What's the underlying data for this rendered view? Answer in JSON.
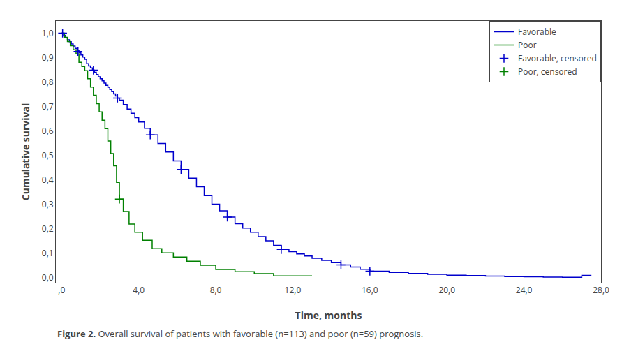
{
  "chart_data": {
    "type": "line",
    "xlabel": "Time, months",
    "ylabel": "Cumulative survival",
    "annotations": [
      "Figure 2.",
      " Overall survival of patients with favorable (n=113) and poor (n=59) prognosis."
    ],
    "xlim": [
      -0.3,
      28
    ],
    "ylim": [
      -0.02,
      1.05
    ],
    "xticks": [
      {
        "value": 0,
        "label": ",0"
      },
      {
        "value": 4,
        "label": "4,0"
      },
      {
        "value": 8,
        "label": "8,0"
      },
      {
        "value": 12,
        "label": "12,0"
      },
      {
        "value": 16,
        "label": "16,0"
      },
      {
        "value": 20,
        "label": "20,0"
      },
      {
        "value": 24,
        "label": "24,0"
      },
      {
        "value": 28,
        "label": "28,0"
      }
    ],
    "yticks": [
      {
        "value": 0.0,
        "label": "0,0"
      },
      {
        "value": 0.1,
        "label": "0,1"
      },
      {
        "value": 0.2,
        "label": "0,2"
      },
      {
        "value": 0.3,
        "label": "0,3"
      },
      {
        "value": 0.4,
        "label": "0,4"
      },
      {
        "value": 0.5,
        "label": "0,5"
      },
      {
        "value": 0.6,
        "label": "0,6"
      },
      {
        "value": 0.7,
        "label": "0,7"
      },
      {
        "value": 0.8,
        "label": "0,8"
      },
      {
        "value": 0.9,
        "label": "0,9"
      },
      {
        "value": 1.0,
        "label": "1,0"
      }
    ],
    "grid": false,
    "legend": "upper right",
    "series": [
      {
        "name": "Favorable",
        "type": "step",
        "color": "#0000CC",
        "x": [
          0.0,
          0.1,
          0.2,
          0.3,
          0.4,
          0.5,
          0.6,
          0.7,
          0.8,
          0.9,
          1.0,
          1.1,
          1.2,
          1.3,
          1.4,
          1.5,
          1.6,
          1.7,
          1.8,
          1.9,
          2.0,
          2.1,
          2.2,
          2.3,
          2.4,
          2.5,
          2.6,
          2.7,
          2.8,
          2.9,
          3.0,
          3.2,
          3.4,
          3.6,
          3.8,
          4.0,
          4.3,
          4.6,
          5.0,
          5.4,
          5.8,
          6.2,
          6.6,
          7.0,
          7.4,
          7.8,
          8.2,
          8.6,
          9.0,
          9.4,
          9.8,
          10.2,
          10.6,
          11.0,
          11.4,
          11.8,
          12.2,
          12.6,
          13.0,
          13.5,
          14.0,
          14.5,
          15.0,
          15.5,
          16.0,
          17.0,
          18.0,
          19.0,
          20.0,
          21.0,
          22.0,
          23.0,
          24.0,
          25.0,
          26.0,
          27.0,
          27.5
        ],
        "values": [
          1.0,
          0.991,
          0.982,
          0.973,
          0.965,
          0.956,
          0.947,
          0.938,
          0.929,
          0.92,
          0.911,
          0.902,
          0.893,
          0.875,
          0.866,
          0.858,
          0.849,
          0.84,
          0.831,
          0.822,
          0.814,
          0.805,
          0.796,
          0.787,
          0.779,
          0.77,
          0.761,
          0.752,
          0.743,
          0.735,
          0.726,
          0.708,
          0.69,
          0.673,
          0.655,
          0.637,
          0.611,
          0.584,
          0.549,
          0.514,
          0.478,
          0.443,
          0.407,
          0.372,
          0.336,
          0.301,
          0.274,
          0.248,
          0.221,
          0.203,
          0.186,
          0.168,
          0.151,
          0.133,
          0.116,
          0.107,
          0.098,
          0.089,
          0.08,
          0.071,
          0.062,
          0.053,
          0.044,
          0.035,
          0.027,
          0.022,
          0.018,
          0.014,
          0.011,
          0.009,
          0.007,
          0.005,
          0.004,
          0.003,
          0.002,
          0.01,
          0.01
        ]
      },
      {
        "name": "Poor",
        "type": "step",
        "color": "#008000",
        "x": [
          0.0,
          0.15,
          0.3,
          0.45,
          0.6,
          0.75,
          0.9,
          1.05,
          1.2,
          1.35,
          1.5,
          1.65,
          1.8,
          1.95,
          2.1,
          2.25,
          2.4,
          2.55,
          2.7,
          2.85,
          3.0,
          3.2,
          3.5,
          3.8,
          4.2,
          4.7,
          5.2,
          5.8,
          6.5,
          7.2,
          8.0,
          9.0,
          10.0,
          11.0,
          12.0,
          13.0
        ],
        "values": [
          1.0,
          0.983,
          0.966,
          0.949,
          0.932,
          0.915,
          0.881,
          0.864,
          0.847,
          0.814,
          0.78,
          0.746,
          0.712,
          0.678,
          0.644,
          0.61,
          0.559,
          0.508,
          0.458,
          0.39,
          0.322,
          0.271,
          0.22,
          0.186,
          0.153,
          0.119,
          0.102,
          0.085,
          0.068,
          0.051,
          0.034,
          0.025,
          0.017,
          0.008,
          0.008,
          0.008
        ]
      },
      {
        "name": "Favorable, censored",
        "type": "scatter",
        "marker": "plus",
        "color": "#0000CC",
        "x": [
          0.05,
          0.85,
          1.65,
          2.9,
          4.6,
          6.2,
          8.6,
          11.4,
          14.5,
          16.0
        ],
        "values": [
          1.0,
          0.925,
          0.849,
          0.735,
          0.584,
          0.443,
          0.248,
          0.116,
          0.053,
          0.027
        ]
      },
      {
        "name": "Poor, censored",
        "type": "scatter",
        "marker": "plus",
        "color": "#008000",
        "x": [
          3.0
        ],
        "values": [
          0.322
        ]
      }
    ]
  }
}
